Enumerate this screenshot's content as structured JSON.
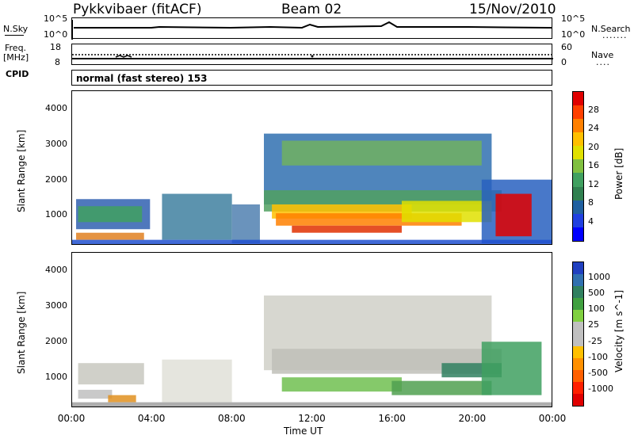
{
  "header": {
    "station": "Pykkvibaer (fitACF)",
    "beam": "Beam 02",
    "date": "15/Nov/2010"
  },
  "noise_panel": {
    "left_label": "N.Sky",
    "left_top": "10^5",
    "left_bottom": "10^0",
    "right_top": "10^5",
    "right_bottom": "10^0",
    "right_label": "N.Search",
    "right_dots": "......."
  },
  "freq_panel": {
    "left_label_1": "Freq.",
    "left_label_2": "[MHz]",
    "left_top": "18",
    "left_bottom": "8",
    "right_top": "60",
    "right_bottom": "0",
    "right_label": "Nave",
    "right_dots": "...."
  },
  "cpid": {
    "label": "CPID",
    "value": "normal (fast stereo) 153"
  },
  "chart_data": [
    {
      "type": "heatmap",
      "parameter": "Power",
      "ylabel": "Slant Range [km]",
      "colorbar_label": "Power [dB]",
      "colorbar_ticks": [
        "28",
        "24",
        "20",
        "16",
        "12",
        "8",
        "4"
      ],
      "colorbar_colors": [
        "#e00000",
        "#ff4000",
        "#ff8000",
        "#ffc000",
        "#e0e000",
        "#80c040",
        "#40a060",
        "#308050",
        "#2060a0",
        "#2040e0",
        "#0000ff"
      ],
      "yticks": [
        "4000",
        "3000",
        "2000",
        "1000"
      ],
      "ylim": [
        180,
        4500
      ],
      "xlim": [
        0,
        24
      ],
      "bands": [
        {
          "t0": 0.2,
          "t1": 3.9,
          "r0": 600,
          "r1": 1450,
          "color": "#3060b0"
        },
        {
          "t0": 0.3,
          "t1": 3.5,
          "r0": 800,
          "r1": 1250,
          "color": "#40a060"
        },
        {
          "t0": 0.2,
          "t1": 3.6,
          "r0": 300,
          "r1": 500,
          "color": "#e08020"
        },
        {
          "t0": 4.5,
          "t1": 8.0,
          "r0": 300,
          "r1": 1600,
          "color": "#4080a0"
        },
        {
          "t0": 8.0,
          "t1": 9.4,
          "r0": 200,
          "r1": 1300,
          "color": "#5080b0"
        },
        {
          "t0": 9.6,
          "t1": 21.0,
          "r0": 1300,
          "r1": 3300,
          "color": "#3070b0"
        },
        {
          "t0": 10.5,
          "t1": 20.5,
          "r0": 2400,
          "r1": 3100,
          "color": "#70b060"
        },
        {
          "t0": 9.6,
          "t1": 21.5,
          "r0": 1100,
          "r1": 1700,
          "color": "#50a060"
        },
        {
          "t0": 10.0,
          "t1": 17.0,
          "r0": 900,
          "r1": 1300,
          "color": "#ffc000"
        },
        {
          "t0": 10.2,
          "t1": 19.5,
          "r0": 700,
          "r1": 1050,
          "color": "#ff8000"
        },
        {
          "t0": 11.0,
          "t1": 16.5,
          "r0": 500,
          "r1": 700,
          "color": "#e03000"
        },
        {
          "t0": 16.5,
          "t1": 21.0,
          "r0": 800,
          "r1": 1400,
          "color": "#e0e000"
        },
        {
          "t0": 20.5,
          "t1": 24.0,
          "r0": 200,
          "r1": 2000,
          "color": "#2860c0"
        },
        {
          "t0": 21.2,
          "t1": 23.0,
          "r0": 400,
          "r1": 1600,
          "color": "#e00000"
        },
        {
          "t0": 0.0,
          "t1": 24.0,
          "r0": 180,
          "r1": 300,
          "color": "#2050d0"
        }
      ]
    },
    {
      "type": "heatmap",
      "parameter": "Velocity",
      "ylabel": "Slant Range [km]",
      "colorbar_label": "Velocity [m s^-1]",
      "colorbar_ticks": [
        "1000",
        "500",
        "100",
        "25",
        "-25",
        "-100",
        "-500",
        "-1000"
      ],
      "colorbar_colors": [
        "#2040c0",
        "#3070b0",
        "#308060",
        "#40a040",
        "#80d040",
        "#c0c0c0",
        "#c0c0c0",
        "#ffc000",
        "#ff9000",
        "#ff6000",
        "#ff2000",
        "#e00000"
      ],
      "yticks": [
        "4000",
        "3000",
        "2000",
        "1000"
      ],
      "ylim": [
        180,
        4500
      ],
      "xlim": [
        0,
        24
      ],
      "xticks": [
        "00:00",
        "04:00",
        "08:00",
        "12:00",
        "16:00",
        "20:00",
        "00:00"
      ],
      "xlabel": "Time UT",
      "bands": [
        {
          "t0": 0.3,
          "t1": 3.6,
          "r0": 800,
          "r1": 1400,
          "color": "#c8c8c0"
        },
        {
          "t0": 0.3,
          "t1": 2.0,
          "r0": 400,
          "r1": 650,
          "color": "#c0c0c0"
        },
        {
          "t0": 1.8,
          "t1": 3.2,
          "r0": 300,
          "r1": 500,
          "color": "#e09020"
        },
        {
          "t0": 4.5,
          "t1": 8.0,
          "r0": 300,
          "r1": 1500,
          "color": "#e0e0d8"
        },
        {
          "t0": 9.6,
          "t1": 21.0,
          "r0": 1200,
          "r1": 3300,
          "color": "#d0d0c8"
        },
        {
          "t0": 10.0,
          "t1": 21.5,
          "r0": 1100,
          "r1": 1800,
          "color": "#c0c0b8"
        },
        {
          "t0": 10.5,
          "t1": 16.5,
          "r0": 600,
          "r1": 1000,
          "color": "#70c050"
        },
        {
          "t0": 16.0,
          "t1": 21.0,
          "r0": 500,
          "r1": 900,
          "color": "#50a050"
        },
        {
          "t0": 18.5,
          "t1": 21.5,
          "r0": 1000,
          "r1": 1400,
          "color": "#308060"
        },
        {
          "t0": 20.5,
          "t1": 23.5,
          "r0": 500,
          "r1": 2000,
          "color": "#40a060"
        },
        {
          "t0": 0.0,
          "t1": 24.0,
          "r0": 180,
          "r1": 300,
          "color": "#a0a0a0"
        }
      ]
    }
  ]
}
